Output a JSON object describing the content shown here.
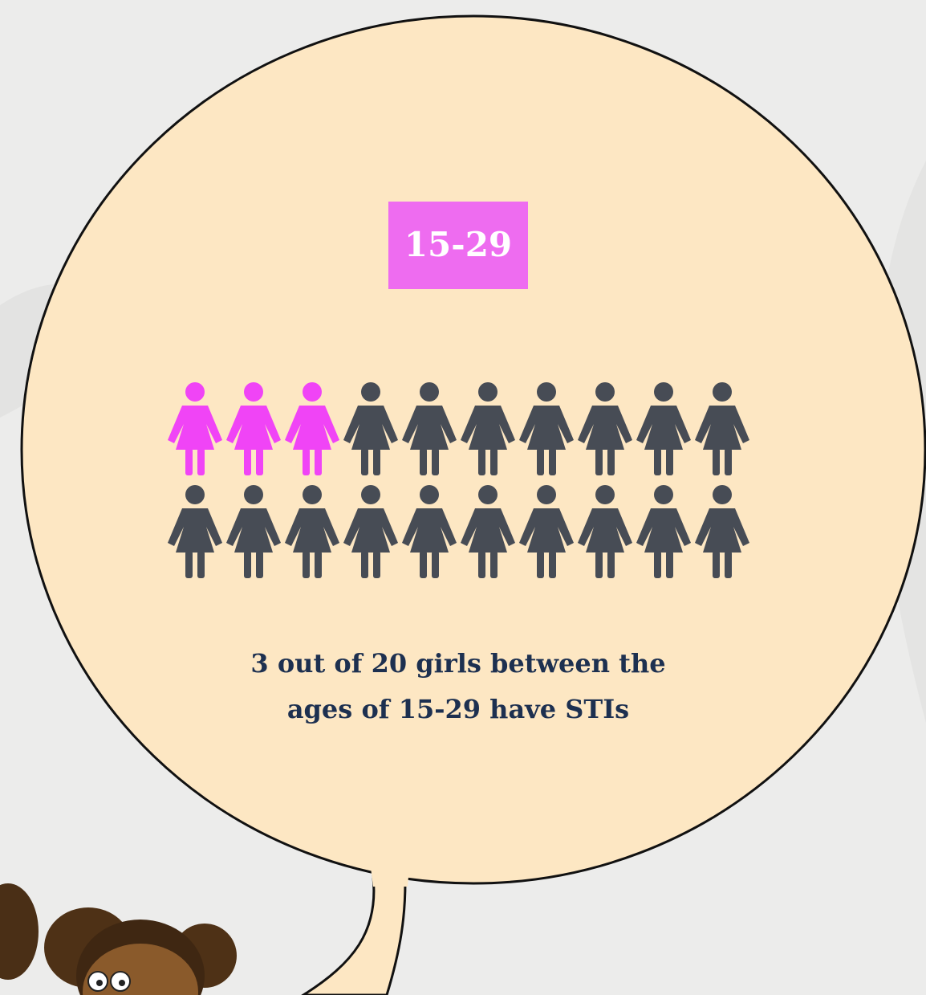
{
  "badge": {
    "label": "15-29",
    "color": "#ee6cf0"
  },
  "pictogram": {
    "highlighted": 3,
    "total": 20,
    "per_row": 10,
    "highlight_color": "#f044f6",
    "base_color": "#474c55"
  },
  "caption": [
    "3 out of 20 girls between the",
    "ages of 15-29 have STIs"
  ]
}
